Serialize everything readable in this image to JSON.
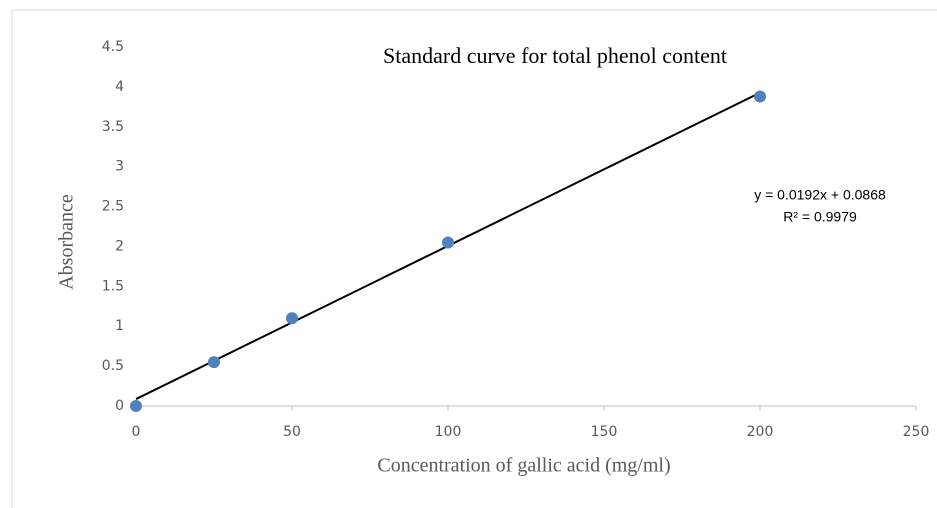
{
  "chart_data": {
    "type": "scatter",
    "title": "Standard curve for total phenol content",
    "x_label": "Concentration of gallic acid (mg/ml)",
    "y_label": "Absorbance",
    "annotations": [
      "y = 0.0192x + 0.0868",
      "R² = 0.9979"
    ],
    "x": [
      0,
      25,
      50,
      100,
      200
    ],
    "values": [
      0,
      0.55,
      1.1,
      2.05,
      3.88
    ],
    "color": "#4f81bd",
    "trendline": {
      "x": [
        0,
        200
      ],
      "values": [
        0.0868,
        3.9268
      ],
      "color": "#000000"
    },
    "xlim": [
      0,
      250
    ],
    "xticks": [
      0,
      50,
      100,
      150,
      200,
      250
    ],
    "ylim": [
      0,
      4.5
    ],
    "yticks": [
      0,
      0.5,
      1,
      1.5,
      2,
      2.5,
      3,
      3.5,
      4,
      4.5
    ],
    "grid": false
  }
}
